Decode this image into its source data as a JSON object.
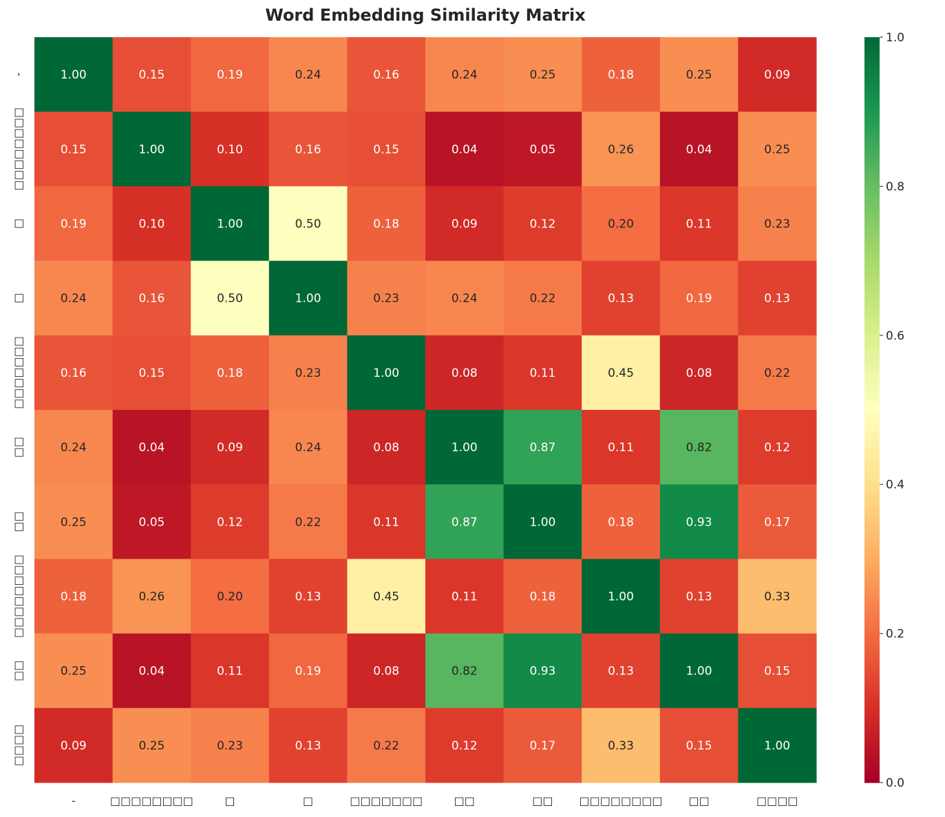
{
  "chart_data": {
    "type": "heatmap",
    "title": "Word Embedding Similarity Matrix",
    "labels": [
      "-",
      "□□□□□□□□",
      "□",
      "□",
      "□□□□□□□",
      "□□",
      "□□",
      "□□□□□□□□",
      "□□",
      "□□□□"
    ],
    "values": [
      [
        1.0,
        0.15,
        0.19,
        0.24,
        0.16,
        0.24,
        0.25,
        0.18,
        0.25,
        0.09
      ],
      [
        0.15,
        1.0,
        0.1,
        0.16,
        0.15,
        0.04,
        0.05,
        0.26,
        0.04,
        0.25
      ],
      [
        0.19,
        0.1,
        1.0,
        0.5,
        0.18,
        0.09,
        0.12,
        0.2,
        0.11,
        0.23
      ],
      [
        0.24,
        0.16,
        0.5,
        1.0,
        0.23,
        0.24,
        0.22,
        0.13,
        0.19,
        0.13
      ],
      [
        0.16,
        0.15,
        0.18,
        0.23,
        1.0,
        0.08,
        0.11,
        0.45,
        0.08,
        0.22
      ],
      [
        0.24,
        0.04,
        0.09,
        0.24,
        0.08,
        1.0,
        0.87,
        0.11,
        0.82,
        0.12
      ],
      [
        0.25,
        0.05,
        0.12,
        0.22,
        0.11,
        0.87,
        1.0,
        0.18,
        0.93,
        0.17
      ],
      [
        0.18,
        0.26,
        0.2,
        0.13,
        0.45,
        0.11,
        0.18,
        1.0,
        0.13,
        0.33
      ],
      [
        0.25,
        0.04,
        0.11,
        0.19,
        0.08,
        0.82,
        0.93,
        0.13,
        1.0,
        0.15
      ],
      [
        0.09,
        0.25,
        0.23,
        0.13,
        0.22,
        0.12,
        0.17,
        0.33,
        0.15,
        1.0
      ]
    ],
    "colormap": "RdYlGn",
    "vmin": 0.0,
    "vmax": 1.0,
    "colorbar_ticks": [
      "0.0",
      "0.2",
      "0.4",
      "0.6",
      "0.8",
      "1.0"
    ]
  }
}
